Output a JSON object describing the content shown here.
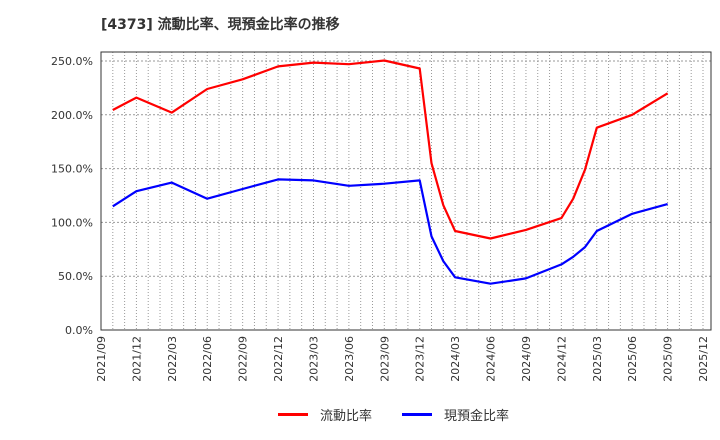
{
  "title": "[4373]  流動比率、現預金比率の推移",
  "chart_data": {
    "type": "line",
    "title": "[4373]  流動比率、現預金比率の推移",
    "xlabel": "",
    "ylabel": "",
    "ylim": [
      0,
      250
    ],
    "y_ticks": [
      "0.0%",
      "50.0%",
      "100.0%",
      "150.0%",
      "200.0%",
      "250.0%"
    ],
    "x_ticks": [
      "2021/09",
      "2021/12",
      "2022/03",
      "2022/06",
      "2022/09",
      "2022/12",
      "2023/03",
      "2023/06",
      "2023/09",
      "2023/12",
      "2024/03",
      "2024/06",
      "2024/09",
      "2024/12",
      "2025/03",
      "2025/06",
      "2025/09",
      "2025/12"
    ],
    "grid": true,
    "legend_position": "bottom",
    "x": [
      "2021/10",
      "2021/12",
      "2022/03",
      "2022/06",
      "2022/09",
      "2022/12",
      "2023/03",
      "2023/06",
      "2023/09",
      "2023/12",
      "2024/01",
      "2024/02",
      "2024/03",
      "2024/06",
      "2024/09",
      "2024/12",
      "2025/01",
      "2025/02",
      "2025/03",
      "2025/06",
      "2025/09"
    ],
    "x_month_index": [
      1,
      3,
      6,
      9,
      12,
      15,
      18,
      21,
      24,
      27,
      28,
      29,
      30,
      33,
      36,
      39,
      40,
      41,
      42,
      45,
      48
    ],
    "series": [
      {
        "name": "流動比率",
        "color": "#ff0000",
        "values": [
          204.5,
          216,
          202,
          224,
          233,
          245,
          248.5,
          247,
          250.5,
          243,
          155,
          116,
          92,
          85,
          93,
          104,
          122,
          149,
          188,
          200,
          220
        ]
      },
      {
        "name": "現預金比率",
        "color": "#0000ff",
        "values": [
          115,
          129,
          137,
          122,
          131,
          140,
          139,
          134,
          136,
          139,
          87,
          64,
          49,
          43,
          48,
          61,
          68,
          77,
          92,
          108,
          117
        ]
      }
    ]
  },
  "legend": [
    {
      "label": "流動比率",
      "color": "#ff0000"
    },
    {
      "label": "現預金比率",
      "color": "#0000ff"
    }
  ]
}
